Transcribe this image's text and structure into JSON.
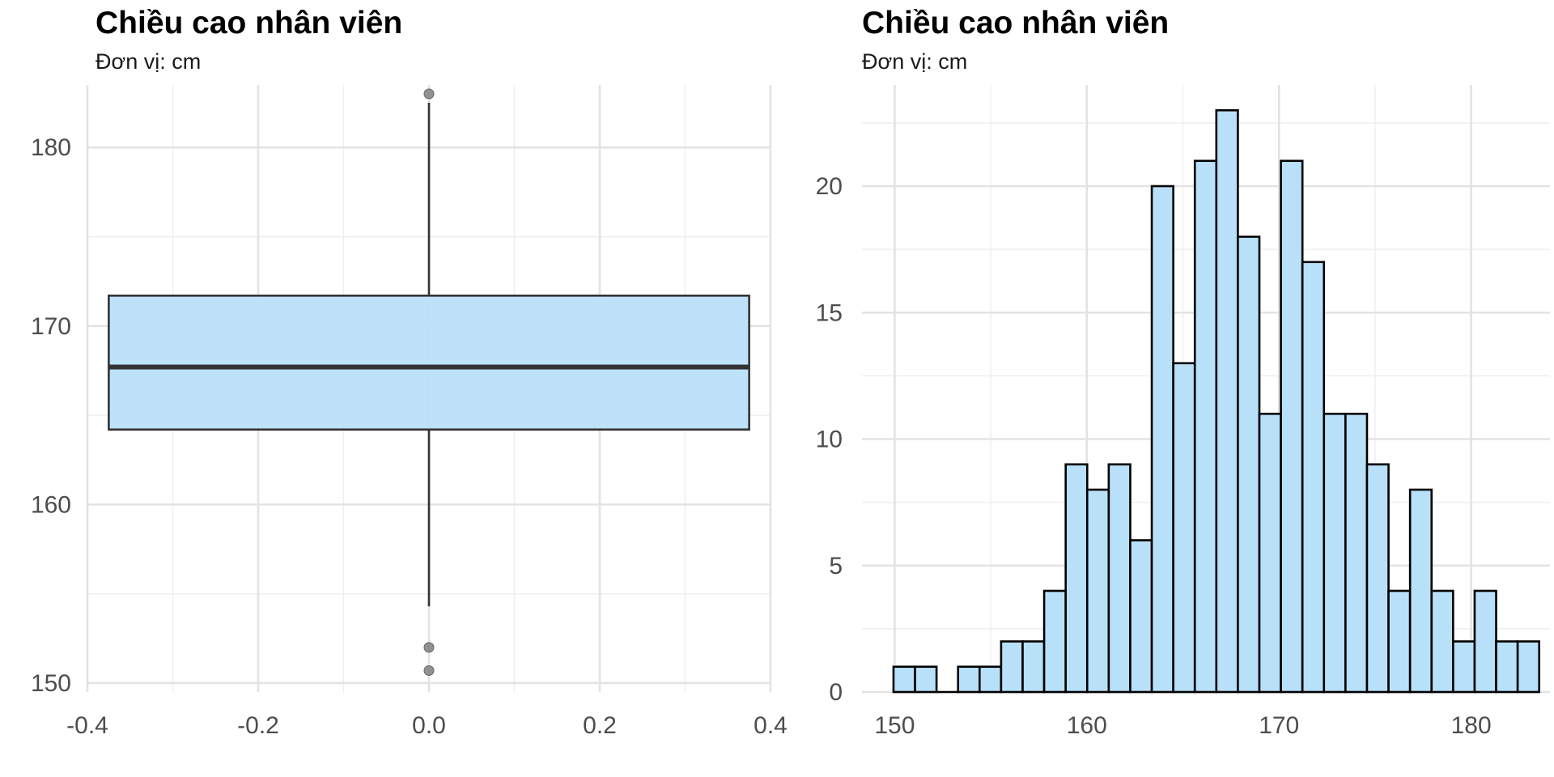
{
  "chart_data": [
    {
      "type": "boxplot",
      "title": "Chiều cao nhân viên",
      "subtitle": "Đơn vị: cm",
      "xlabel": "",
      "ylabel": "",
      "xlim": [
        -0.4,
        0.4
      ],
      "ylim": [
        149.5,
        183.5
      ],
      "x_ticks": [
        -0.4,
        -0.2,
        0.0,
        0.2,
        0.4
      ],
      "x_tick_labels": [
        "-0.4",
        "-0.2",
        "0.0",
        "0.2",
        "0.4"
      ],
      "y_ticks": [
        150,
        160,
        170,
        180
      ],
      "y_tick_labels": [
        "150",
        "160",
        "170",
        "180"
      ],
      "grid": true,
      "box": {
        "x_center": 0.0,
        "x_min": -0.375,
        "x_max": 0.375,
        "q1": 164.2,
        "median": 167.7,
        "q3": 171.7,
        "whisker_low": 154.3,
        "whisker_high": 182.5,
        "outliers": [
          183.0,
          152.0,
          150.7
        ]
      },
      "colors": {
        "fill": "#b9e0f9",
        "stroke": "#333333",
        "outlier": "#7f7f7f"
      }
    },
    {
      "type": "histogram",
      "title": "Chiều cao nhân viên",
      "subtitle": "Đơn vị: cm",
      "xlabel": "",
      "ylabel": "",
      "bin_width": 1.12,
      "x_start": 149.94,
      "xlim": [
        148.3,
        184.1
      ],
      "ylim": [
        0,
        24.0
      ],
      "x_ticks": [
        150,
        160,
        170,
        180
      ],
      "x_tick_labels": [
        "150",
        "160",
        "170",
        "180"
      ],
      "y_ticks": [
        0,
        5,
        10,
        15,
        20
      ],
      "y_tick_labels": [
        "0",
        "5",
        "10",
        "15",
        "20"
      ],
      "grid": true,
      "counts": [
        1,
        1,
        0,
        1,
        1,
        2,
        2,
        4,
        9,
        8,
        9,
        6,
        20,
        13,
        21,
        23,
        18,
        11,
        21,
        17,
        11,
        11,
        9,
        4,
        8,
        4,
        2,
        4,
        2,
        2
      ],
      "colors": {
        "fill": "#b9e0f9",
        "stroke": "#000000"
      }
    }
  ]
}
